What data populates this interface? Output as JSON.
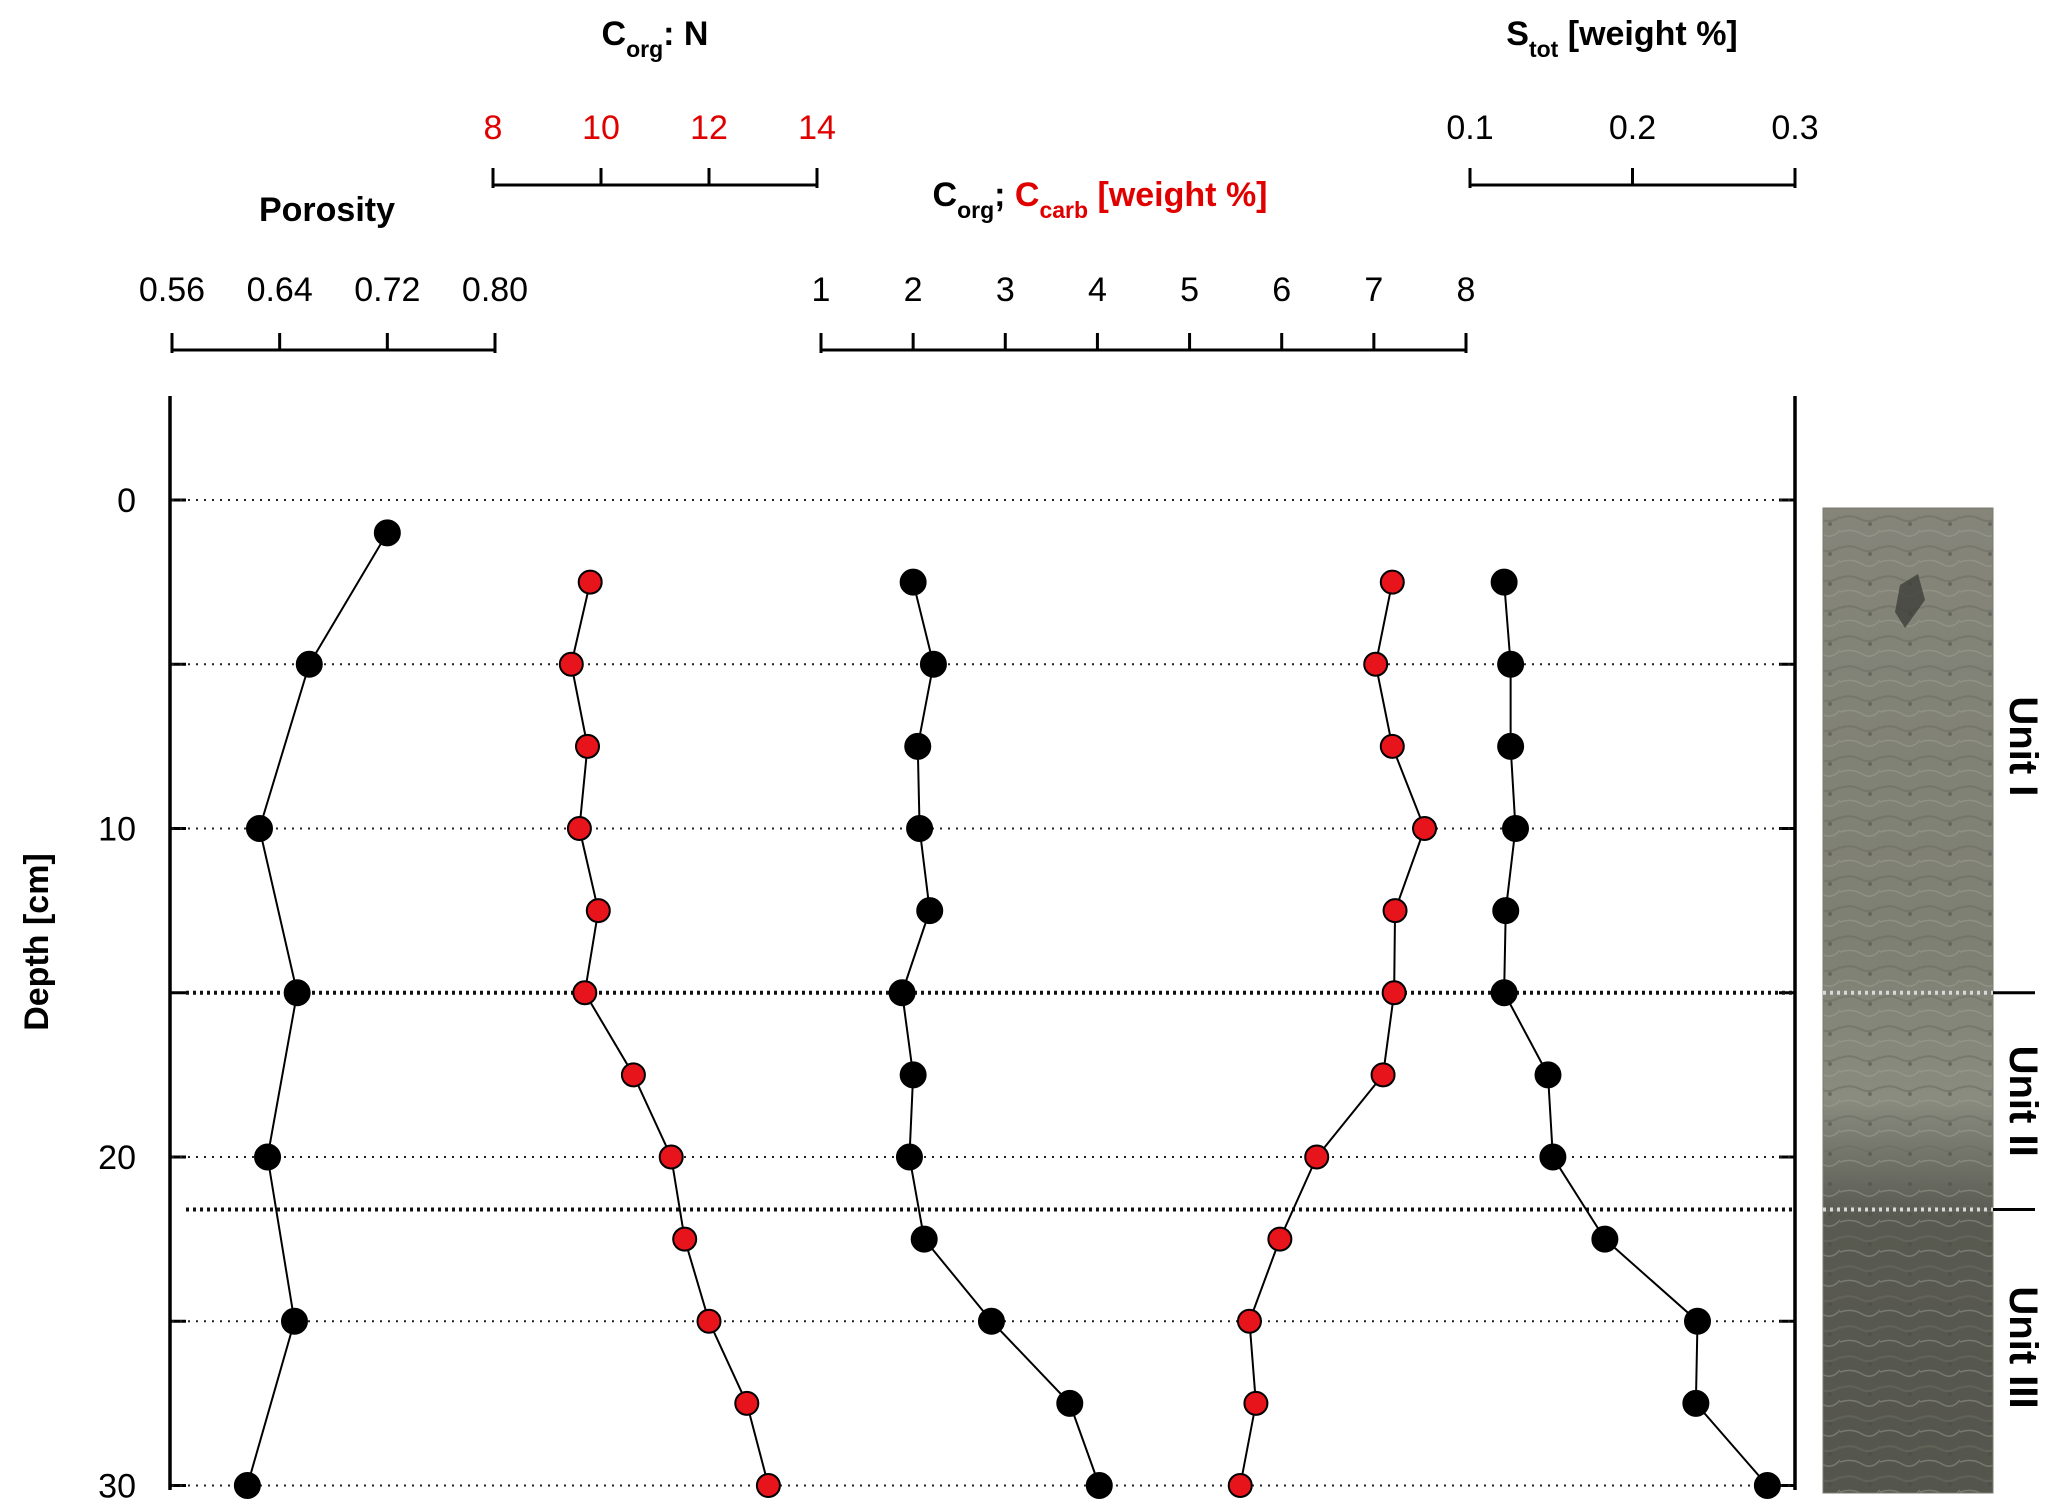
{
  "chart_data": {
    "type": "scatter",
    "depth_axis": {
      "label": "Depth [cm]",
      "ticks": [
        0,
        10,
        20,
        30
      ],
      "range": [
        -3,
        30
      ],
      "minor_ticks": [
        0,
        5,
        10,
        15,
        20,
        25,
        30
      ]
    },
    "colors": {
      "black": "#000000",
      "red": "#e8141b",
      "red_text": "#e00000"
    },
    "panels": {
      "porosity": {
        "title": "Porosity",
        "ticks": [
          "0.56",
          "0.64",
          "0.72",
          "0.80"
        ],
        "range": [
          0.56,
          0.8
        ]
      },
      "cn": {
        "title": {
          "c": "C",
          "org": "org",
          "rest": ": N"
        },
        "ticks": [
          "8",
          "10",
          "12",
          "14"
        ],
        "range": [
          8,
          14
        ]
      },
      "carbon": {
        "title": {
          "c1": "C",
          "org": "org",
          "sep": "; ",
          "c2": "C",
          "carb": "carb",
          "rest": " [weight %]"
        },
        "ticks": [
          "1",
          "2",
          "3",
          "4",
          "5",
          "6",
          "7",
          "8"
        ],
        "range": [
          1,
          8
        ]
      },
      "stot": {
        "title": {
          "s": "S",
          "tot": "tot",
          "rest": " [weight %]"
        },
        "ticks": [
          "0.1",
          "0.2",
          "0.3"
        ],
        "range": [
          0.1,
          0.3
        ]
      }
    },
    "series": [
      {
        "panel": "porosity",
        "color": "black",
        "points": [
          [
            0.72,
            1
          ],
          [
            0.662,
            5
          ],
          [
            0.625,
            10
          ],
          [
            0.653,
            15
          ],
          [
            0.631,
            20
          ],
          [
            0.651,
            25
          ],
          [
            0.616,
            30
          ]
        ]
      },
      {
        "panel": "cn",
        "color": "red",
        "points": [
          [
            9.8,
            2.5
          ],
          [
            9.45,
            5
          ],
          [
            9.75,
            7.5
          ],
          [
            9.6,
            10
          ],
          [
            9.95,
            12.5
          ],
          [
            9.7,
            15
          ],
          [
            10.6,
            17.5
          ],
          [
            11.3,
            20
          ],
          [
            11.55,
            22.5
          ],
          [
            12.0,
            25
          ],
          [
            12.7,
            27.5
          ],
          [
            13.1,
            30
          ]
        ]
      },
      {
        "panel": "carbon",
        "color": "black",
        "points": [
          [
            2.0,
            2.5
          ],
          [
            2.22,
            5
          ],
          [
            2.05,
            7.5
          ],
          [
            2.07,
            10
          ],
          [
            2.18,
            12.5
          ],
          [
            1.88,
            15
          ],
          [
            2.0,
            17.5
          ],
          [
            1.96,
            20
          ],
          [
            2.12,
            22.5
          ],
          [
            2.85,
            25
          ],
          [
            3.7,
            27.5
          ],
          [
            4.02,
            30
          ]
        ]
      },
      {
        "panel": "carbon",
        "color": "red",
        "points": [
          [
            7.2,
            2.5
          ],
          [
            7.02,
            5
          ],
          [
            7.2,
            7.5
          ],
          [
            7.55,
            10
          ],
          [
            7.23,
            12.5
          ],
          [
            7.22,
            15
          ],
          [
            7.1,
            17.5
          ],
          [
            6.38,
            20
          ],
          [
            5.98,
            22.5
          ],
          [
            5.65,
            25
          ],
          [
            5.72,
            27.5
          ],
          [
            5.55,
            30
          ]
        ]
      },
      {
        "panel": "stot",
        "color": "black",
        "points": [
          [
            0.121,
            2.5
          ],
          [
            0.125,
            5
          ],
          [
            0.125,
            7.5
          ],
          [
            0.128,
            10
          ],
          [
            0.122,
            12.5
          ],
          [
            0.121,
            15
          ],
          [
            0.148,
            17.5
          ],
          [
            0.151,
            20
          ],
          [
            0.183,
            22.5
          ],
          [
            0.24,
            25
          ],
          [
            0.239,
            27.5
          ],
          [
            0.283,
            30
          ]
        ]
      }
    ],
    "unit_boundaries": [
      15,
      21.6
    ],
    "units": [
      {
        "label": "Unit I",
        "from": 0,
        "to": 15
      },
      {
        "label": "Unit II",
        "from": 15,
        "to": 21.6
      },
      {
        "label": "Unit III",
        "from": 21.6,
        "to": 30
      }
    ]
  }
}
